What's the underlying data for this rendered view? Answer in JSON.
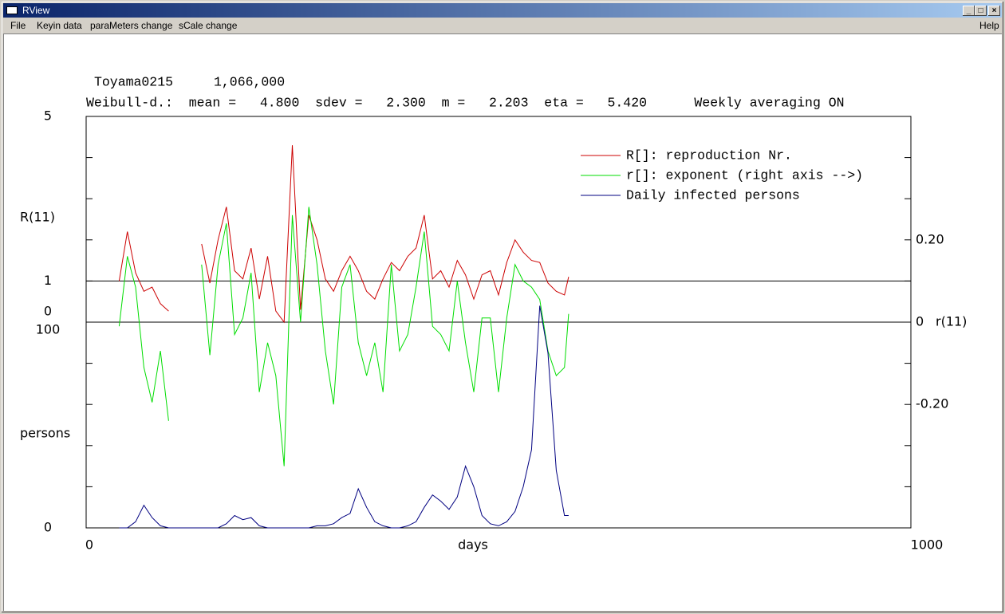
{
  "window": {
    "title": "RView",
    "menu": [
      "File",
      "Keyin data",
      "paraMeters change",
      "sCale change"
    ],
    "help": "Help"
  },
  "chart_data": {
    "type": "line",
    "title": "Toyama0215",
    "annotation": "1,066,000",
    "subtitle": "Weibull-d.:  mean =   4.800  sdev =   2.300  m =   2.203  eta =   5.420      Weekly averaging ON",
    "xlabel": "days",
    "ylabel": "R(11)",
    "y3label": "persons",
    "y2label": "r(11)",
    "xlim": [
      0,
      1000
    ],
    "xticks": [
      0,
      1000
    ],
    "ylim": [
      0,
      5
    ],
    "yticks": [
      0,
      1,
      5
    ],
    "yminor": [
      2,
      3,
      4
    ],
    "y3lim": [
      0,
      100
    ],
    "y3ticks": [
      0,
      100
    ],
    "y3minor": [
      20,
      40,
      60,
      80
    ],
    "y2lim": [
      -0.5,
      0.5
    ],
    "y2ticks": [
      {
        "value": 0.2,
        "label": "0.20"
      },
      0,
      {
        "value": -0.2,
        "label": "-0.20"
      }
    ],
    "y2minor": [
      -0.4,
      -0.3,
      -0.1,
      0.1,
      0.3,
      0.4
    ],
    "reference_lines": [
      {
        "axis": "y",
        "value": 1
      },
      {
        "axis": "y2",
        "value": 0
      }
    ],
    "grid": false,
    "legend": "upper right",
    "x": [
      40,
      50,
      60,
      70,
      80,
      90,
      100,
      110,
      120,
      130,
      140,
      150,
      160,
      170,
      180,
      190,
      200,
      210,
      220,
      230,
      240,
      250,
      260,
      270,
      280,
      290,
      300,
      310,
      320,
      330,
      340,
      350,
      360,
      370,
      380,
      390,
      400,
      410,
      420,
      430,
      440,
      450,
      460,
      470,
      480,
      490,
      500,
      510,
      520,
      530,
      540,
      550,
      560,
      570,
      580,
      585
    ],
    "series": [
      {
        "name": "R[]: reproduction Nr.",
        "color": "#cc0000",
        "axis": "y",
        "values": [
          1.0,
          2.2,
          1.2,
          0.75,
          0.85,
          0.45,
          0.27,
          null,
          null,
          null,
          1.9,
          0.95,
          2.0,
          2.8,
          1.25,
          1.05,
          1.8,
          0.56,
          1.6,
          0.27,
          0,
          4.3,
          0.3,
          2.6,
          2.0,
          1.05,
          0.75,
          1.25,
          1.6,
          1.25,
          0.75,
          0.56,
          1.05,
          1.45,
          1.25,
          1.6,
          1.8,
          2.6,
          1.05,
          1.25,
          0.85,
          1.5,
          1.15,
          0.56,
          1.15,
          1.25,
          0.66,
          1.45,
          2.0,
          1.7,
          1.5,
          1.45,
          0.95,
          0.75,
          0.66,
          1.1
        ]
      },
      {
        "name": "r[]: exponent (right axis -->)",
        "color": "#00dd00",
        "axis": "y2",
        "values": [
          -0.01,
          0.16,
          0.085,
          -0.11,
          -0.195,
          -0.07,
          -0.24,
          null,
          null,
          null,
          0.14,
          -0.08,
          0.14,
          0.24,
          -0.03,
          0.01,
          0.12,
          -0.17,
          -0.05,
          -0.13,
          -0.35,
          0.26,
          0,
          0.28,
          0.14,
          -0.07,
          -0.2,
          0.085,
          0.14,
          -0.05,
          -0.13,
          -0.05,
          -0.17,
          0.14,
          -0.07,
          -0.03,
          0.085,
          0.22,
          -0.01,
          -0.03,
          -0.07,
          0.1,
          -0.05,
          -0.17,
          0.01,
          0.01,
          -0.17,
          0.01,
          0.14,
          0.1,
          0.085,
          0.055,
          -0.07,
          -0.13,
          -0.11,
          0.02
        ]
      },
      {
        "name": "Daily infected persons",
        "color": "#000080",
        "axis": "y3",
        "values": [
          0,
          0,
          3,
          11,
          5,
          1,
          0,
          0,
          0,
          0,
          0,
          0,
          0,
          2,
          6,
          4,
          5,
          1,
          0,
          0,
          0,
          0,
          0,
          0,
          1,
          1,
          2,
          5,
          7,
          19,
          10,
          3,
          1,
          0,
          0,
          1,
          3,
          10,
          16,
          13,
          9,
          15,
          30,
          20,
          6,
          2,
          1,
          3,
          8,
          20,
          38,
          108,
          85,
          28,
          6,
          6
        ]
      }
    ]
  }
}
